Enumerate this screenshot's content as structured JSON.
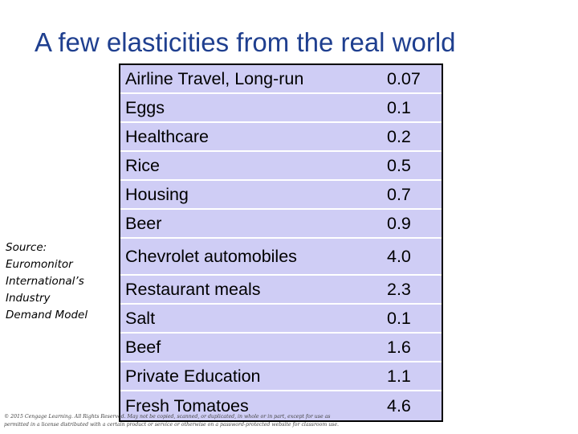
{
  "title": "A few elasticities from the real world",
  "source_lines": [
    "Source:",
    "Euromonitor",
    "International’s",
    "Industry",
    "Demand Model"
  ],
  "rows": [
    {
      "name": "Airline Travel, Long-run",
      "value": "0.07"
    },
    {
      "name": "Eggs",
      "value": "0.1"
    },
    {
      "name": "Healthcare",
      "value": "0.2"
    },
    {
      "name": "Rice",
      "value": "0.5"
    },
    {
      "name": "Housing",
      "value": "0.7"
    },
    {
      "name": "Beer",
      "value": "0.9"
    },
    {
      "name": "Chevrolet automobiles",
      "value": "4.0"
    },
    {
      "name": "Restaurant meals",
      "value": "2.3"
    },
    {
      "name": "Salt",
      "value": "0.1"
    },
    {
      "name": "Beef",
      "value": "1.6"
    },
    {
      "name": "Private Education",
      "value": "1.1"
    },
    {
      "name": "Fresh Tomatoes",
      "value": "4.6"
    }
  ],
  "copyright_lines": [
    "© 2015 Cengage Learning. All Rights Reserved. May not be copied, scanned, or duplicated, in whole or in part, except for use as",
    "permitted in a license distributed with a certain product or service or otherwise on a password-protected website for classroom use."
  ],
  "colors": {
    "title": "#1f3f8f",
    "table_fill": "#cfcdf5",
    "row_divider": "#ffffff"
  }
}
